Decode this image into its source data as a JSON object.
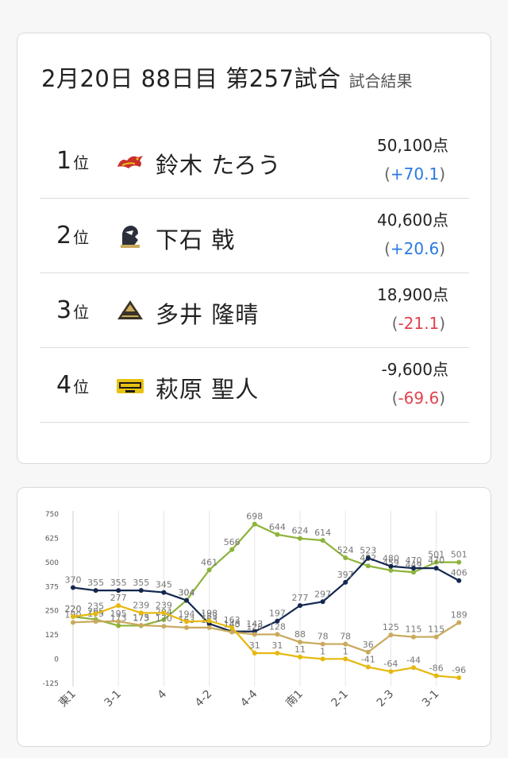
{
  "result": {
    "title": "2月20日 88日目 第257試合",
    "subtitle": "試合結果",
    "rank_suffix": "位",
    "rows": [
      {
        "rank": "1",
        "name": "鈴木 たろう",
        "score": "50,100点",
        "diff_open": "(",
        "diff": "+70.1",
        "diff_close": ")",
        "sign": "pos",
        "team_icon": "dragon-team-logo-icon",
        "team_color": "#c9302c"
      },
      {
        "rank": "2",
        "name": "下石 戟",
        "score": "40,600点",
        "diff_open": "(",
        "diff": "+20.6",
        "diff_close": ")",
        "sign": "pos",
        "team_icon": "knight-team-logo-icon",
        "team_color": "#2b2f3a"
      },
      {
        "rank": "3",
        "name": "多井 隆晴",
        "score": "18,900点",
        "diff_open": "(",
        "diff": "-21.1",
        "diff_close": ")",
        "sign": "neg",
        "team_icon": "pyramid-team-logo-icon",
        "team_color": "#7a6a45"
      },
      {
        "rank": "4",
        "name": "萩原 聖人",
        "score": "-9,600点",
        "diff_open": "(",
        "diff": "-69.6",
        "diff_close": ")",
        "sign": "neg",
        "team_icon": "raiden-team-logo-icon",
        "team_color": "#e8c210"
      }
    ]
  },
  "chart_data": {
    "type": "line",
    "yticks": [
      750,
      625,
      500,
      375,
      250,
      125,
      0,
      -125
    ],
    "ylim": [
      -125,
      750
    ],
    "x_tick_labels": [
      {
        "index": 0,
        "label": "東1"
      },
      {
        "index": 2,
        "label": "3-1"
      },
      {
        "index": 4,
        "label": "4"
      },
      {
        "index": 6,
        "label": "4-2"
      },
      {
        "index": 8,
        "label": "4-4"
      },
      {
        "index": 10,
        "label": "南1"
      },
      {
        "index": 12,
        "label": "2-1"
      },
      {
        "index": 14,
        "label": "2-3"
      },
      {
        "index": 16,
        "label": "3-1"
      }
    ],
    "grid": "vertical",
    "series": [
      {
        "color": "#8db33a",
        "values": [
          220,
          205,
          173,
          173,
          204,
          304,
          461,
          566,
          698,
          644,
          624,
          614,
          524,
          482,
          459,
          449,
          501,
          501
        ]
      },
      {
        "color": "#142850",
        "values": [
          370,
          355,
          355,
          355,
          345,
          304,
          183,
          143,
          143,
          197,
          277,
          297,
          397,
          523,
          480,
          470,
          470,
          406
        ]
      },
      {
        "color": "#c9a95c",
        "values": [
          190,
          195,
          195,
          175,
          170,
          163,
          163,
          140,
          128,
          128,
          88,
          78,
          78,
          36,
          125,
          115,
          115,
          189
        ]
      },
      {
        "color": "#e6b80f",
        "values": [
          220,
          235,
          277,
          239,
          239,
          194,
          198,
          163,
          31,
          31,
          11,
          1,
          1,
          -41,
          -64,
          -44,
          -86,
          -96
        ]
      }
    ]
  }
}
